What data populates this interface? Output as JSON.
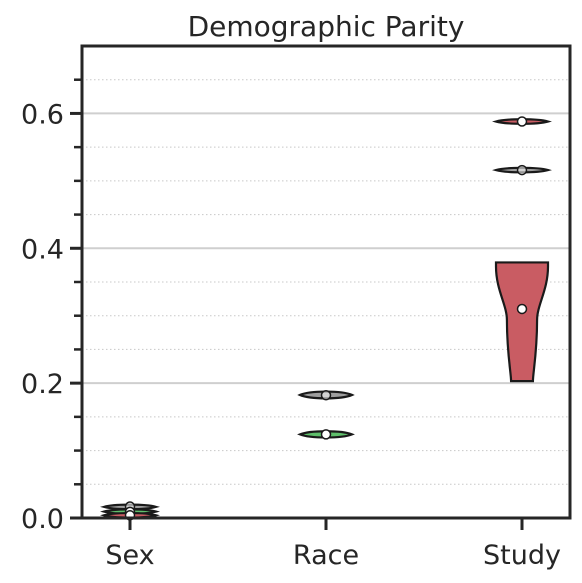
{
  "chart_data": {
    "type": "violin",
    "title": "Demographic Parity",
    "xlabel": "",
    "ylabel": "",
    "ylim": [
      0,
      0.7
    ],
    "yticks": [
      {
        "value": 0.0,
        "label": "0.0"
      },
      {
        "value": 0.2,
        "label": "0.2"
      },
      {
        "value": 0.4,
        "label": "0.4"
      },
      {
        "value": 0.6,
        "label": "0.6"
      }
    ],
    "yminor_step": 0.05,
    "grid": {
      "major": true,
      "minor": true,
      "major_style": "solid",
      "minor_style": "dotted"
    },
    "categories": [
      "Sex",
      "Race",
      "Study"
    ],
    "series": [
      {
        "category": "Sex",
        "violins": [
          {
            "color": "#9e9e9e",
            "min": 0.015,
            "max": 0.018,
            "median": 0.017,
            "shape": "flat"
          },
          {
            "color": "#5fbf6b",
            "min": 0.008,
            "max": 0.011,
            "median": 0.009,
            "shape": "flat"
          },
          {
            "color": "#c95c63",
            "min": 0.002,
            "max": 0.006,
            "median": 0.004,
            "shape": "flat"
          }
        ]
      },
      {
        "category": "Race",
        "violins": [
          {
            "color": "#9e9e9e",
            "min": 0.178,
            "max": 0.187,
            "median": 0.182,
            "shape": "flat"
          },
          {
            "color": "#5fbf6b",
            "min": 0.12,
            "max": 0.128,
            "median": 0.124,
            "shape": "flat"
          }
        ]
      },
      {
        "category": "Study",
        "violins": [
          {
            "color": "#c95c63",
            "min": 0.586,
            "max": 0.59,
            "median": 0.588,
            "shape": "flat"
          },
          {
            "color": "#9e9e9e",
            "min": 0.514,
            "max": 0.518,
            "median": 0.516,
            "shape": "flat"
          },
          {
            "color": "#c95c63",
            "min": 0.203,
            "max": 0.379,
            "median": 0.31,
            "shape": "funnel"
          }
        ]
      }
    ]
  }
}
